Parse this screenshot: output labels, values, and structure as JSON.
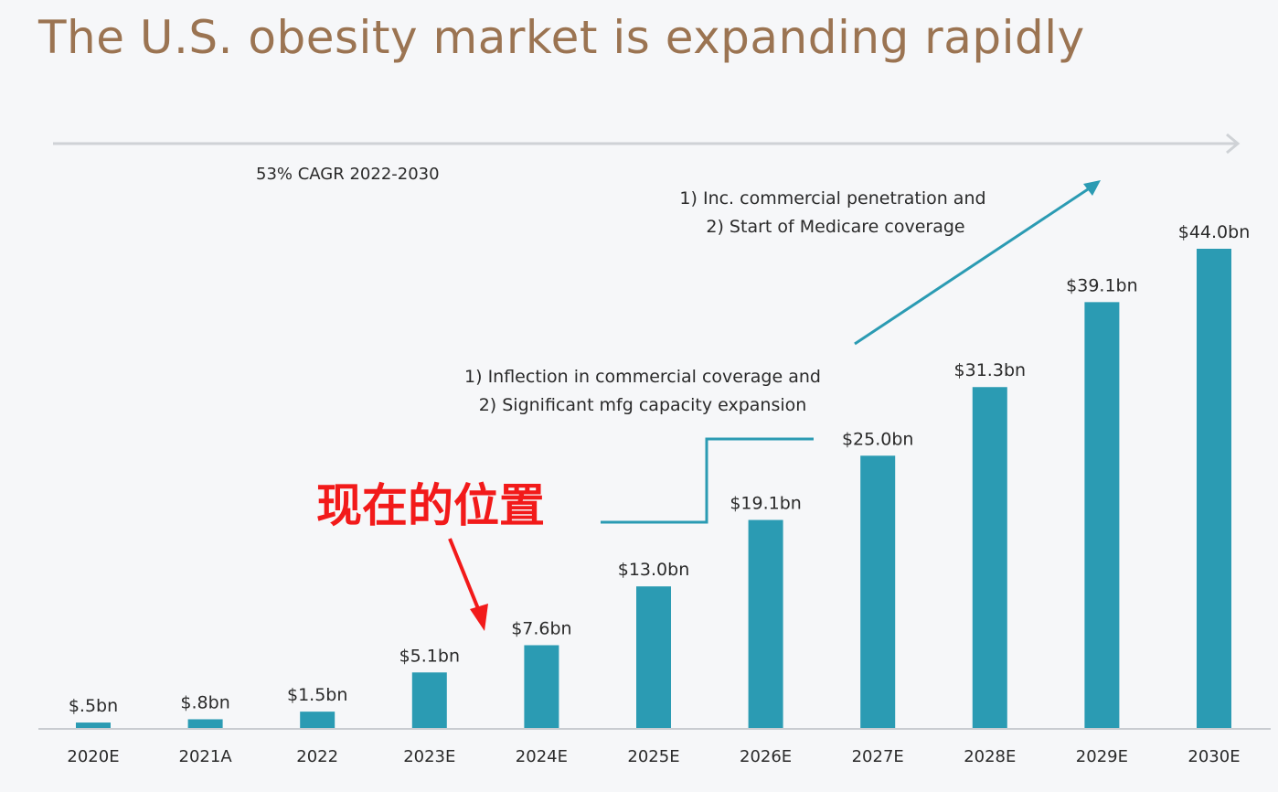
{
  "title": "The U.S. obesity market is expanding rapidly",
  "cagr_label": "53% CAGR 2022-2030",
  "annotation_upper": [
    "1) Inc. commercial penetration and",
    "2) Start of Medicare coverage"
  ],
  "annotation_lower": [
    "1) Inflection in commercial coverage and",
    "2) Significant mfg capacity expansion"
  ],
  "overlay_label": "现在的位置",
  "colors": {
    "bar": "#2b9bb3",
    "title": "#9b7452",
    "overlay": "#f21a1a",
    "axis": "#c9ccd1"
  },
  "chart_data": {
    "type": "bar",
    "title": "The U.S. obesity market is expanding rapidly",
    "categories": [
      "2020E",
      "2021A",
      "2022",
      "2023E",
      "2024E",
      "2025E",
      "2026E",
      "2027E",
      "2028E",
      "2029E",
      "2030E"
    ],
    "values": [
      0.5,
      0.8,
      1.5,
      5.1,
      7.6,
      13.0,
      19.1,
      25.0,
      31.3,
      39.1,
      44.0
    ],
    "value_labels": [
      "$.5bn",
      "$.8bn",
      "$1.5bn",
      "$5.1bn",
      "$7.6bn",
      "$13.0bn",
      "$19.1bn",
      "$25.0bn",
      "$31.3bn",
      "$39.1bn",
      "$44.0bn"
    ],
    "unit": "USD bn",
    "xlabel": "",
    "ylabel": "",
    "ylim": [
      0,
      44
    ],
    "grid": false,
    "legend": "none"
  }
}
